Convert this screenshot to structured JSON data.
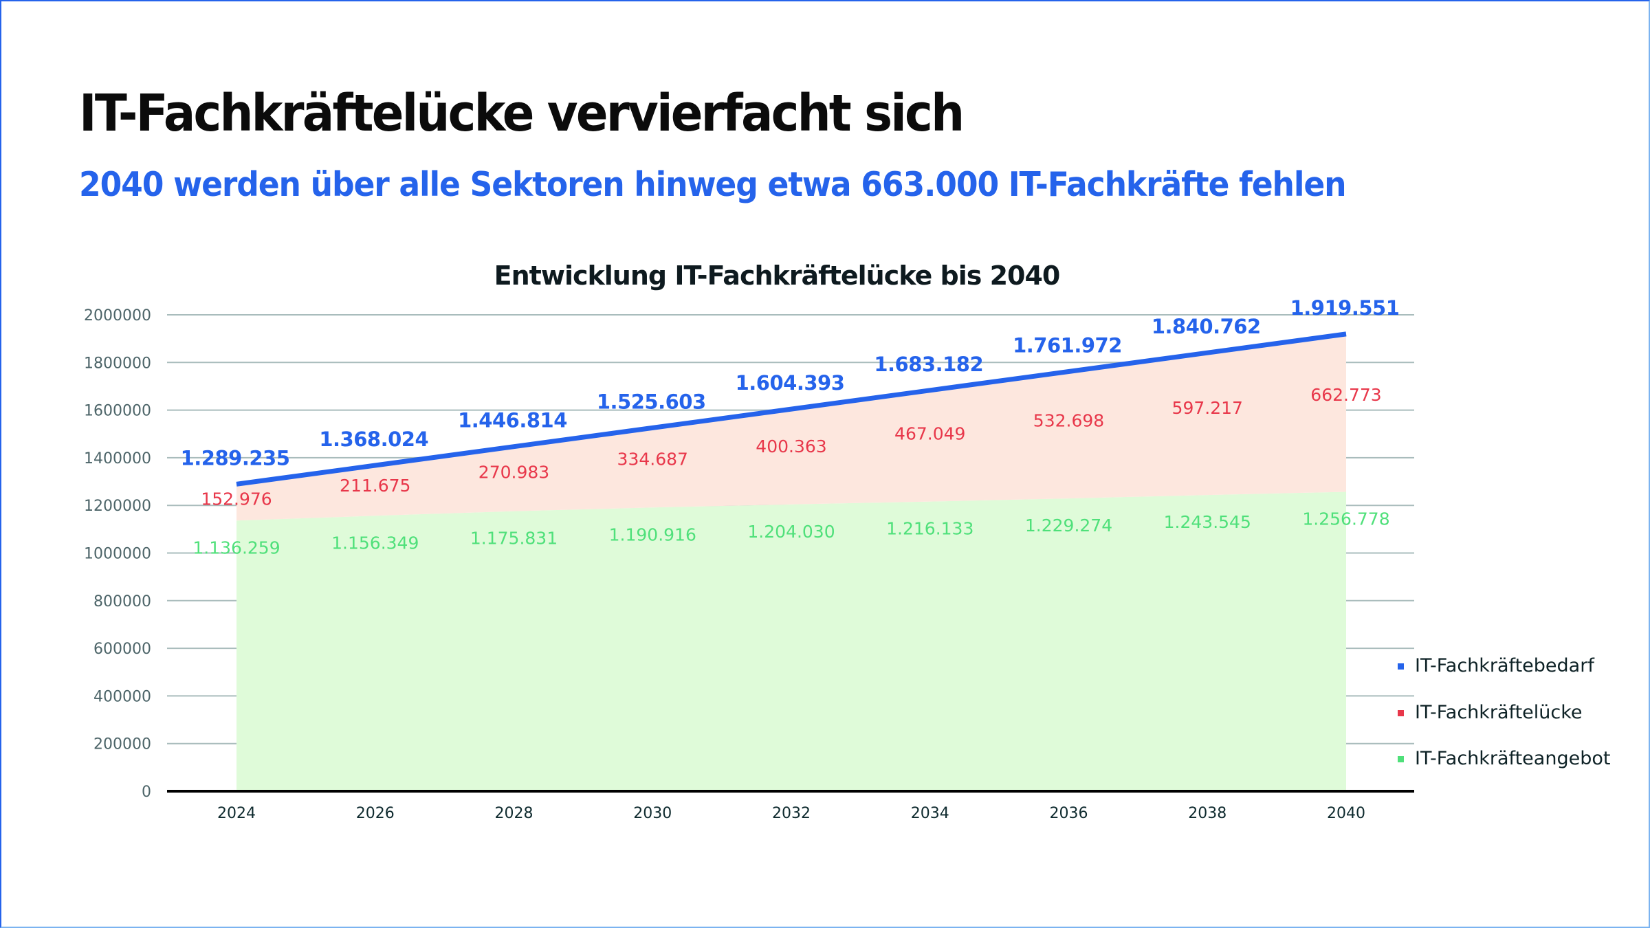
{
  "page": {
    "headline": "IT-Fachkräftelücke vervierfacht sich",
    "subheadline": "2040 werden über alle Sektoren hinweg etwa 663.000 IT-Fachkräfte fehlen"
  },
  "colors": {
    "demand": "#2563eb",
    "gap": "#e8374a",
    "gap_fill": "#fde7de",
    "supply": "#4fe07a",
    "supply_fill": "#dffbd9",
    "grid": "#a9bcbc",
    "axis": "#000000"
  },
  "chart_data": {
    "type": "area",
    "stacked": true,
    "title": "Entwicklung IT-Fachkräftelücke bis 2040",
    "xlabel": "",
    "ylabel": "",
    "ylim": [
      0,
      2000000
    ],
    "yticks": [
      0,
      200000,
      400000,
      600000,
      800000,
      1000000,
      1200000,
      1400000,
      1600000,
      1800000,
      2000000
    ],
    "ytick_labels": [
      "0",
      "200000",
      "400000",
      "600000",
      "800000",
      "1000000",
      "1200000",
      "1400000",
      "1600000",
      "1800000",
      "2000000"
    ],
    "grid": true,
    "legend_position": "right",
    "categories": [
      "2024",
      "2026",
      "2028",
      "2030",
      "2032",
      "2034",
      "2036",
      "2038",
      "2040"
    ],
    "series": [
      {
        "name": "IT-Fachkräftebedarf",
        "kind": "line",
        "color": "#2563eb",
        "values": [
          1289235,
          1368024,
          1446814,
          1525603,
          1604393,
          1683182,
          1761972,
          1840762,
          1919551
        ],
        "labels": [
          "1.289.235",
          "1.368.024",
          "1.446.814",
          "1.525.603",
          "1.604.393",
          "1.683.182",
          "1.761.972",
          "1.840.762",
          "1.919.551"
        ]
      },
      {
        "name": "IT-Fachkräftelücke",
        "kind": "area",
        "color": "#e8374a",
        "values": [
          152976,
          211675,
          270983,
          334687,
          400363,
          467049,
          532698,
          597217,
          662773
        ],
        "labels": [
          "152.976",
          "211.675",
          "270.983",
          "334.687",
          "400.363",
          "467.049",
          "532.698",
          "597.217",
          "662.773"
        ]
      },
      {
        "name": "IT-Fachkräfteangebot",
        "kind": "area",
        "color": "#4fe07a",
        "values": [
          1136259,
          1156349,
          1175831,
          1190916,
          1204030,
          1216133,
          1229274,
          1243545,
          1256778
        ],
        "labels": [
          "1.136.259",
          "1.156.349",
          "1.175.831",
          "1.190.916",
          "1.204.030",
          "1.216.133",
          "1.229.274",
          "1.243.545",
          "1.256.778"
        ]
      }
    ]
  }
}
